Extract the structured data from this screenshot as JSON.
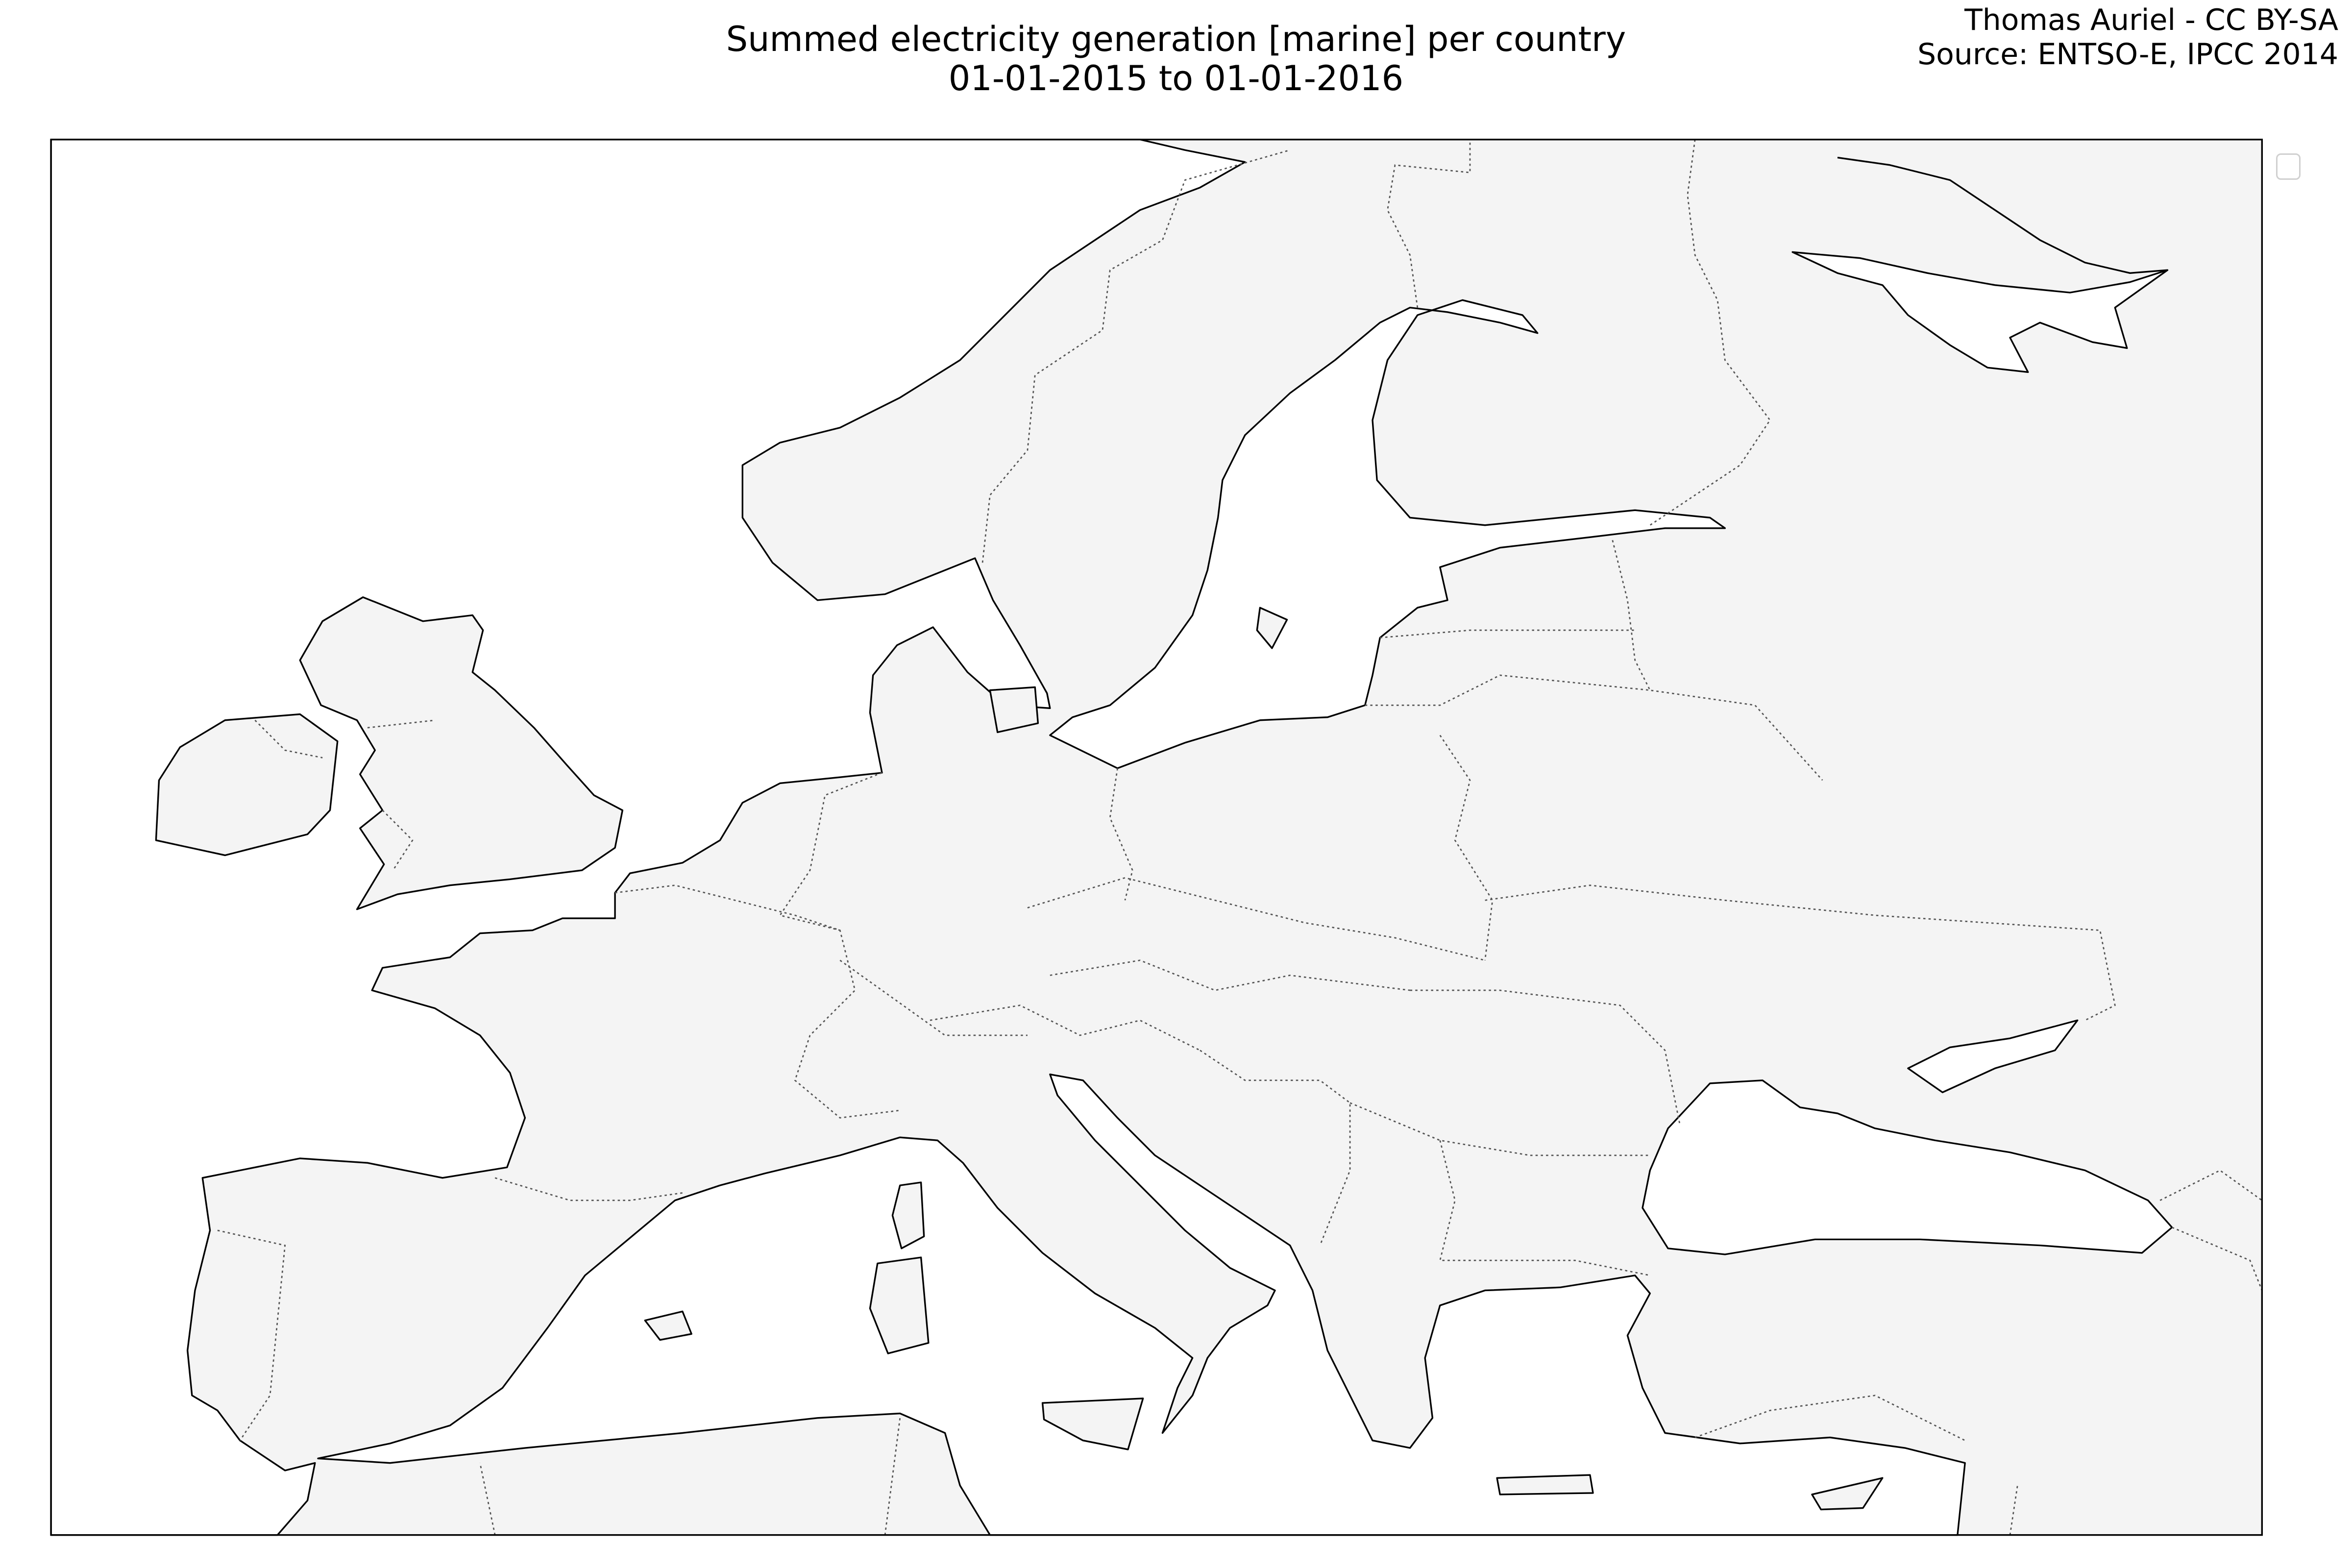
{
  "title": {
    "line1": "Summed electricity generation [marine] per country",
    "line2": "01-01-2015 to 01-01-2016"
  },
  "attribution": {
    "author": "Thomas Auriel - CC BY-SA",
    "source": "Source: ENTSO-E, IPCC 2014"
  },
  "map": {
    "region": "Europe",
    "land_color": "#f4f4f4",
    "sea_color": "#ffffff",
    "coastline_color": "#000000",
    "border_color": "#555555",
    "legend_entries": []
  }
}
